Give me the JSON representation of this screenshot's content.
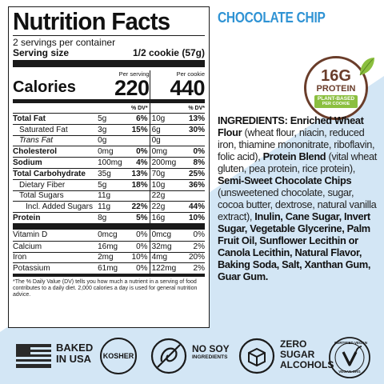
{
  "product_title": "CHOCOLATE CHIP",
  "badge": {
    "number": "16G",
    "word": "PROTEIN",
    "ribbon_line1": "PLANT-BASED",
    "ribbon_line2": "PER COOKIE"
  },
  "nutrition": {
    "title": "Nutrition Facts",
    "servings": "2 servings per container",
    "serving_size_label": "Serving size",
    "serving_size_value": "1/2 cookie (57g)",
    "calories_label": "Calories",
    "per_serving_label": "Per serving",
    "per_cookie_label": "Per cookie",
    "calories_serving": "220",
    "calories_cookie": "440",
    "dv_label": "% DV*",
    "rows": [
      {
        "name": "Total Fat",
        "amt": "5g",
        "dv": "6%",
        "amt2": "10g",
        "dv2": "13%"
      },
      {
        "name": "Saturated Fat",
        "amt": "3g",
        "dv": "15%",
        "amt2": "6g",
        "dv2": "30%"
      },
      {
        "name": "Trans Fat",
        "amt": "0g",
        "dv": "",
        "amt2": "0g",
        "dv2": ""
      },
      {
        "name": "Cholesterol",
        "amt": "0mg",
        "dv": "0%",
        "amt2": "0mg",
        "dv2": "0%"
      },
      {
        "name": "Sodium",
        "amt": "100mg",
        "dv": "4%",
        "amt2": "200mg",
        "dv2": "8%"
      },
      {
        "name": "Total Carbohydrate",
        "amt": "35g",
        "dv": "13%",
        "amt2": "70g",
        "dv2": "25%"
      },
      {
        "name": "Dietary Fiber",
        "amt": "5g",
        "dv": "18%",
        "amt2": "10g",
        "dv2": "36%"
      },
      {
        "name": "Total Sugars",
        "amt": "11g",
        "dv": "",
        "amt2": "22g",
        "dv2": ""
      },
      {
        "name": "Incl. Added Sugars",
        "amt": "11g",
        "dv": "22%",
        "amt2": "22g",
        "dv2": "44%"
      },
      {
        "name": "Protein",
        "amt": "8g",
        "dv": "5%",
        "amt2": "16g",
        "dv2": "10%"
      }
    ],
    "vitamins": [
      {
        "name": "Vitamin D",
        "amt": "0mcg",
        "dv": "0%",
        "amt2": "0mcg",
        "dv2": "0%"
      },
      {
        "name": "Calcium",
        "amt": "16mg",
        "dv": "0%",
        "amt2": "32mg",
        "dv2": "2%"
      },
      {
        "name": "Iron",
        "amt": "2mg",
        "dv": "10%",
        "amt2": "4mg",
        "dv2": "20%"
      },
      {
        "name": "Potassium",
        "amt": "61mg",
        "dv": "0%",
        "amt2": "122mg",
        "dv2": "2%"
      }
    ],
    "footnote": "*The % Daily Value (DV) tells you how much a nutrient in a serving of food contributes to a daily diet. 2,000 calories a day is used for general nutrition advice."
  },
  "ingredients": {
    "p1": "INGREDIENTS: Enriched Wheat Flour",
    "p2": " (wheat flour, niacin, reduced iron, thiamine mononitrate, riboflavin, folic acid), ",
    "p3": "Protein Blend",
    "p4": " (vital wheat gluten, pea protein, rice protein), ",
    "p5": "Semi-Sweet Chocolate Chips",
    "p6": " (unsweetened chocolate, sugar, cocoa butter, dextrose, natural vanilla extract), ",
    "p7": "Inulin, Cane Sugar, Invert Sugar, Vegetable Glycerine, Palm Fruit Oil, Sunflower Lecithin or Canola Lecithin, Natural Flavor, Baking Soda, Salt, Xanthan Gum, Guar Gum."
  },
  "icons": {
    "baked_line1": "BAKED",
    "baked_line2": "IN USA",
    "kosher": "KOSHER",
    "nosoy_line1": "NO SOY",
    "nosoy_line2": "INGREDIENTS",
    "zero_line1": "ZERO",
    "zero_line2": "SUGAR",
    "zero_line3": "ALCOHOLS",
    "vegan_top": "CERTIFIED VEGAN",
    "vegan_bottom": "VEGAN.ORG"
  },
  "colors": {
    "accent_blue": "#2f93d4",
    "background_blue": "#d3e6f5",
    "badge_brown": "#6a3d2a",
    "leaf_green": "#8bbf3f"
  }
}
